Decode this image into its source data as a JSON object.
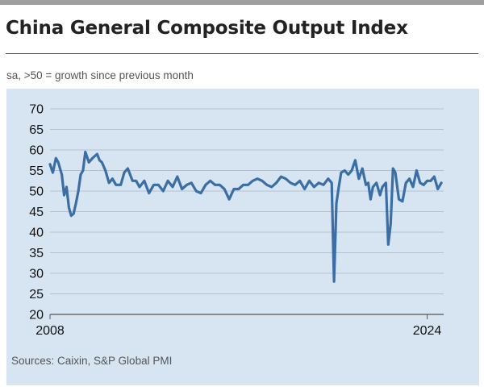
{
  "title": "China General Composite Output Index",
  "subtitle": "sa, >50 = growth since previous month",
  "source": "Sources: Caixin, S&P Global PMI",
  "colors": {
    "line": "#3a6ea5",
    "panel_bg": "#d7e5f2",
    "grid": "#a9b4c0",
    "axis": "#555555"
  },
  "chart_data": {
    "type": "line",
    "title": "China General Composite Output Index",
    "xlabel": "",
    "ylabel": "",
    "ylim": [
      20,
      70
    ],
    "y_ticks": [
      20,
      25,
      30,
      35,
      40,
      45,
      50,
      55,
      60,
      65,
      70
    ],
    "x_range": [
      2008.0,
      2024.7
    ],
    "x_tick_labels": [
      {
        "x": 2008,
        "label": "2008"
      },
      {
        "x": 2024,
        "label": "2024"
      }
    ],
    "grid": true,
    "series": [
      {
        "name": "",
        "x": [
          2008.0,
          2008.12,
          2008.25,
          2008.35,
          2008.5,
          2008.6,
          2008.7,
          2008.8,
          2008.9,
          2009.0,
          2009.1,
          2009.2,
          2009.3,
          2009.4,
          2009.5,
          2009.65,
          2009.8,
          2010.0,
          2010.1,
          2010.2,
          2010.35,
          2010.5,
          2010.65,
          2010.8,
          2011.0,
          2011.15,
          2011.3,
          2011.5,
          2011.65,
          2011.8,
          2012.0,
          2012.2,
          2012.4,
          2012.6,
          2012.8,
          2013.0,
          2013.2,
          2013.4,
          2013.6,
          2013.8,
          2014.0,
          2014.2,
          2014.4,
          2014.6,
          2014.8,
          2015.0,
          2015.2,
          2015.4,
          2015.6,
          2015.8,
          2016.0,
          2016.2,
          2016.4,
          2016.6,
          2016.8,
          2017.0,
          2017.2,
          2017.4,
          2017.6,
          2017.8,
          2018.0,
          2018.2,
          2018.4,
          2018.6,
          2018.8,
          2019.0,
          2019.2,
          2019.4,
          2019.6,
          2019.8,
          2019.95,
          2020.05,
          2020.15,
          2020.25,
          2020.35,
          2020.5,
          2020.65,
          2020.8,
          2020.95,
          2021.1,
          2021.25,
          2021.4,
          2021.5,
          2021.6,
          2021.7,
          2021.85,
          2022.0,
          2022.1,
          2022.25,
          2022.35,
          2022.45,
          2022.55,
          2022.65,
          2022.8,
          2022.95,
          2023.1,
          2023.25,
          2023.4,
          2023.55,
          2023.7,
          2023.85,
          2024.0,
          2024.15,
          2024.3,
          2024.45,
          2024.6
        ],
        "y": [
          56.5,
          54.5,
          58,
          57,
          54,
          49,
          51,
          46,
          44,
          44.5,
          47,
          50,
          54,
          55,
          59.5,
          57,
          58,
          59,
          57.5,
          57,
          55,
          52,
          53,
          51.5,
          51.5,
          54.5,
          55.5,
          52.5,
          52.5,
          51,
          52.5,
          49.5,
          51.5,
          51.5,
          50,
          52.5,
          51,
          53.5,
          50.5,
          51.5,
          52,
          50,
          49.5,
          51.5,
          52.5,
          51.5,
          51.5,
          50.5,
          48,
          50.5,
          50.5,
          51.5,
          51.5,
          52.5,
          53,
          52.5,
          51.5,
          51,
          52,
          53.5,
          53,
          52,
          51.5,
          52.5,
          50.5,
          52.5,
          51,
          52,
          51.5,
          53,
          52,
          28,
          47,
          51,
          54.5,
          55,
          54,
          55,
          57.5,
          53,
          55.5,
          51.5,
          52,
          48,
          51,
          52,
          49,
          51,
          52,
          37,
          42,
          55.5,
          54.5,
          48,
          47.5,
          52,
          53,
          51,
          55,
          52,
          51.5,
          52.5,
          52.5,
          53.5,
          50.5,
          52
        ]
      }
    ]
  }
}
